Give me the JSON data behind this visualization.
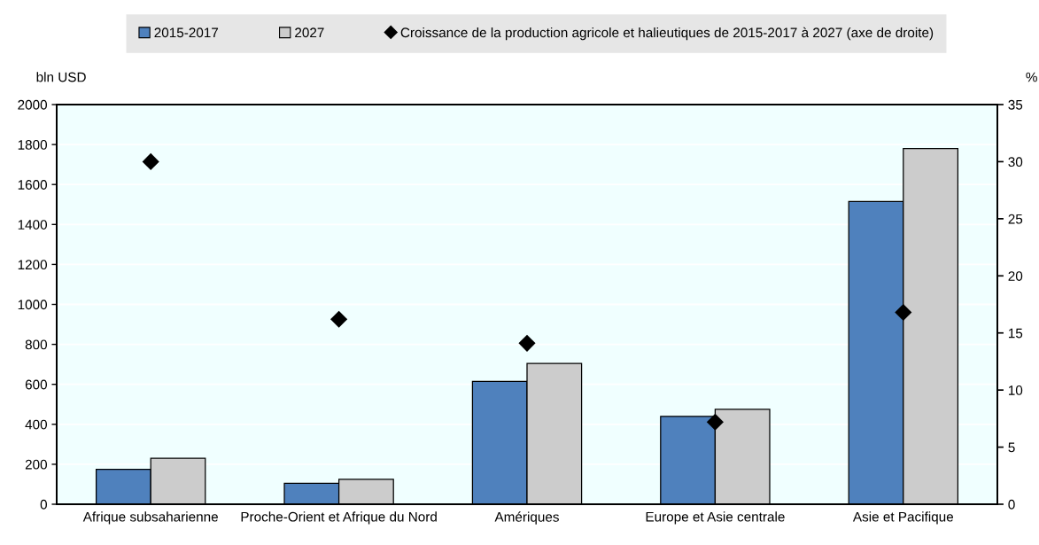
{
  "chart_data": {
    "type": "bar",
    "categories": [
      "Afrique subsaharienne",
      "Proche-Orient et Afrique du Nord",
      "Amériques",
      "Europe et Asie centrale",
      "Asie et Pacifique"
    ],
    "series": [
      {
        "name": "2015-2017",
        "color": "#4f81bd",
        "values": [
          175,
          105,
          615,
          440,
          1515
        ]
      },
      {
        "name": "2027",
        "color": "#cccccc",
        "values": [
          230,
          125,
          705,
          475,
          1780
        ]
      },
      {
        "name": "Croissance de la production agricole et halieutiques de 2015-2017 à 2027 (axe de droite)",
        "type": "scatter",
        "axis": "y2",
        "color": "#000000",
        "marker": "diamond",
        "values": [
          30.0,
          16.2,
          14.1,
          7.2,
          16.8
        ]
      }
    ],
    "ylabel": "bln USD",
    "y2label": "%",
    "ylim": [
      0,
      2000
    ],
    "yticks": [
      0,
      200,
      400,
      600,
      800,
      1000,
      1200,
      1400,
      1600,
      1800,
      2000
    ],
    "y2lim": [
      0,
      35
    ],
    "y2ticks": [
      0,
      5,
      10,
      15,
      20,
      25,
      30,
      35
    ],
    "grid": true,
    "legend": "top"
  }
}
